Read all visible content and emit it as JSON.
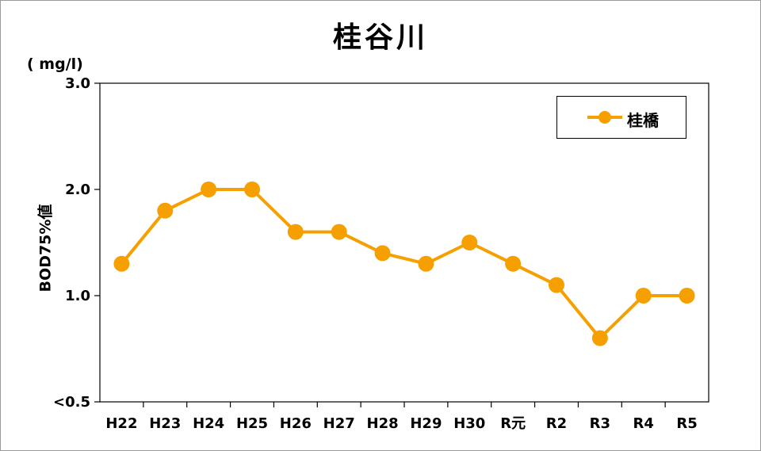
{
  "chart_data": {
    "type": "line",
    "title": "桂谷川",
    "unit_label": "( mg/l)",
    "ylabel": "BOD75%値",
    "categories": [
      "H22",
      "H23",
      "H24",
      "H25",
      "H26",
      "H27",
      "H28",
      "H29",
      "H30",
      "R元",
      "R2",
      "R3",
      "R4",
      "R5"
    ],
    "yticks": [
      "3.0",
      "2.0",
      "1.0",
      "<0.5"
    ],
    "series": [
      {
        "name": "桂橋",
        "color": "#f5a000",
        "values": [
          1.3,
          1.8,
          2.0,
          2.0,
          1.6,
          1.6,
          1.4,
          1.3,
          1.5,
          1.3,
          1.1,
          0.8,
          1.0,
          1.0
        ]
      }
    ],
    "legend_position": "top-right",
    "grid": false
  }
}
